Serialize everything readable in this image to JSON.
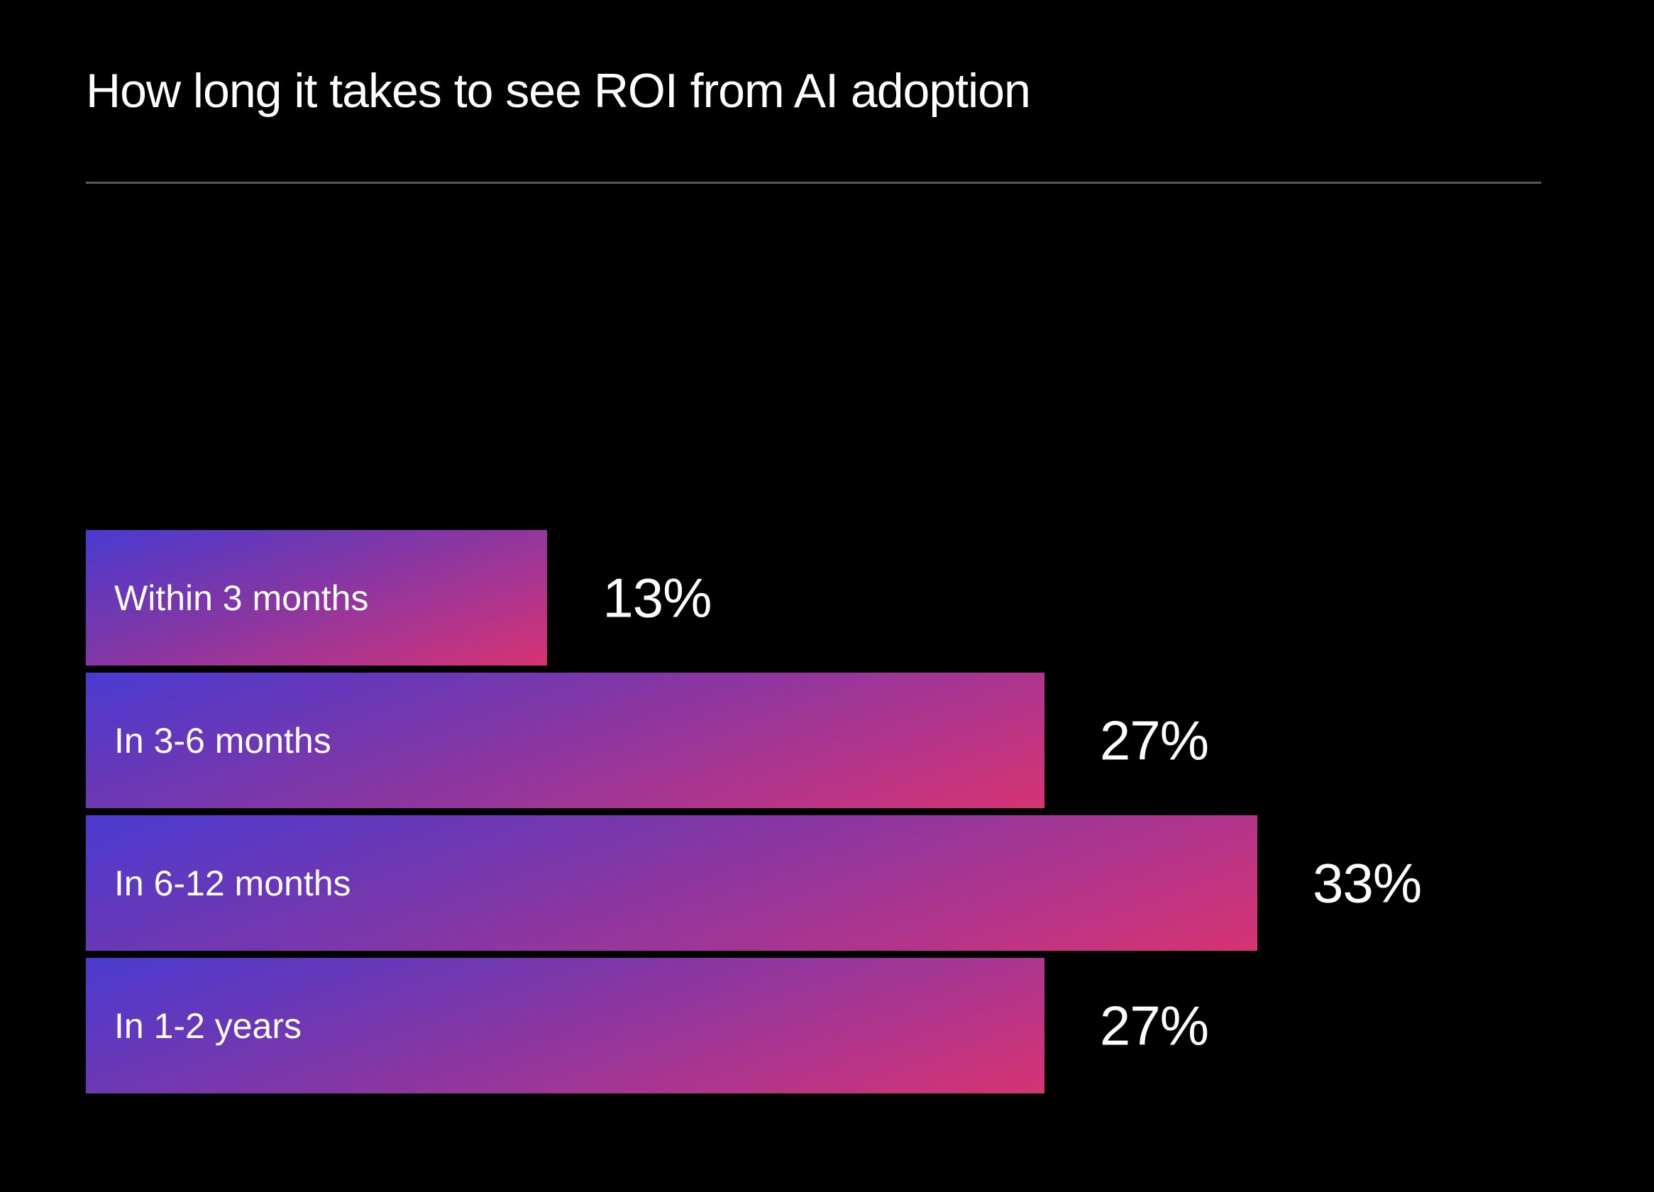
{
  "chart_data": {
    "type": "bar",
    "orientation": "horizontal",
    "title": "How long it takes to see ROI from AI adoption",
    "categories": [
      "Within 3 months",
      "In 3-6 months",
      "In 6-12 months",
      "In 1-2 years"
    ],
    "values": [
      13,
      27,
      33,
      27
    ],
    "value_labels": [
      "13%",
      "27%",
      "33%",
      "27%"
    ],
    "unit": "%",
    "xlabel": "",
    "ylabel": "",
    "grid": false,
    "legend": "none",
    "colors": {
      "background": "#000000",
      "text": "#ffffff",
      "divider": "#5a5a5a",
      "bar_gradient_start": "#4a3ad0",
      "bar_gradient_end": "#d73372"
    }
  }
}
